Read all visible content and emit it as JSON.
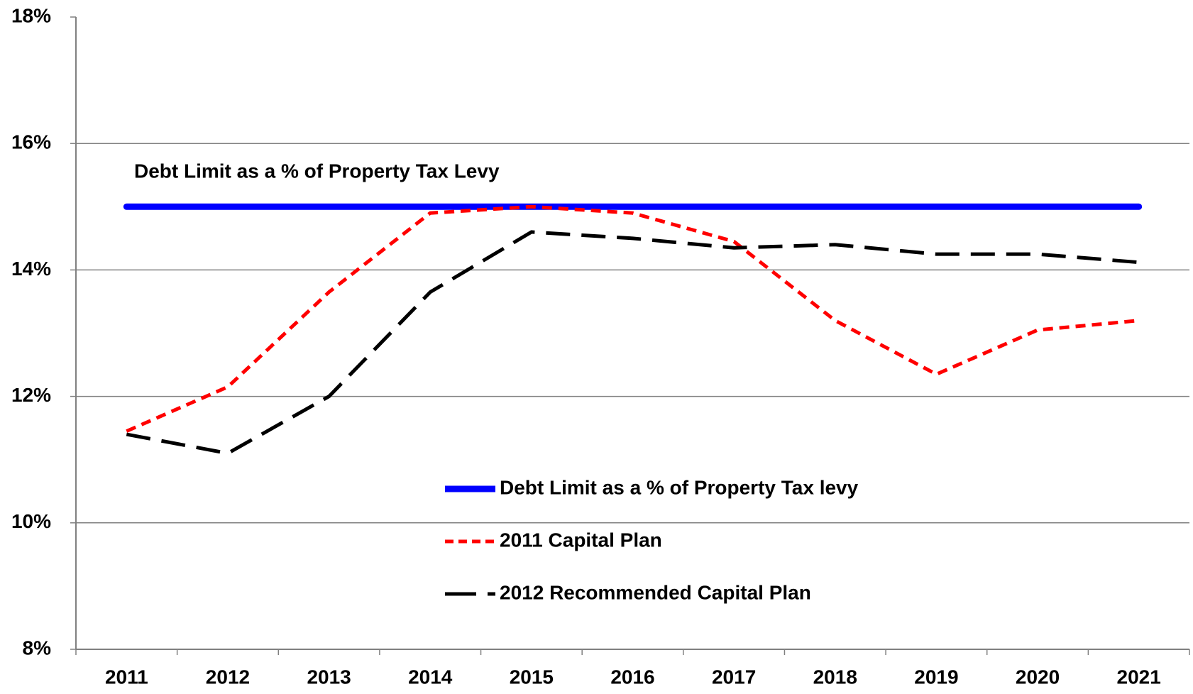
{
  "chart_data": {
    "type": "line",
    "annotation": "Debt Limit as a % of Property Tax Levy",
    "categories": [
      "2011",
      "2012",
      "2013",
      "2014",
      "2015",
      "2016",
      "2017",
      "2018",
      "2019",
      "2020",
      "2021"
    ],
    "series": [
      {
        "name": "Debt Limit as a % of Property Tax levy",
        "color": "#0000ff",
        "style": "solid",
        "values": [
          15,
          15,
          15,
          15,
          15,
          15,
          15,
          15,
          15,
          15,
          15
        ]
      },
      {
        "name": "2011 Capital Plan",
        "color": "#ff0000",
        "style": "dashed",
        "values": [
          11.45,
          12.15,
          13.65,
          14.9,
          15.0,
          14.9,
          14.45,
          13.2,
          12.35,
          13.05,
          13.2
        ]
      },
      {
        "name": "2012 Recommended Capital Plan",
        "color": "#000000",
        "style": "long-dashed",
        "values": [
          11.4,
          11.1,
          12.0,
          13.65,
          14.6,
          14.5,
          14.35,
          14.4,
          14.25,
          14.25,
          14.12
        ]
      }
    ],
    "ylim": [
      8,
      18
    ],
    "yticks": [
      {
        "value": 8,
        "label": "8%"
      },
      {
        "value": 10,
        "label": "10%"
      },
      {
        "value": 12,
        "label": "12%"
      },
      {
        "value": 14,
        "label": "14%"
      },
      {
        "value": 16,
        "label": "16%"
      },
      {
        "value": 18,
        "label": "18%"
      }
    ],
    "grid": true
  }
}
